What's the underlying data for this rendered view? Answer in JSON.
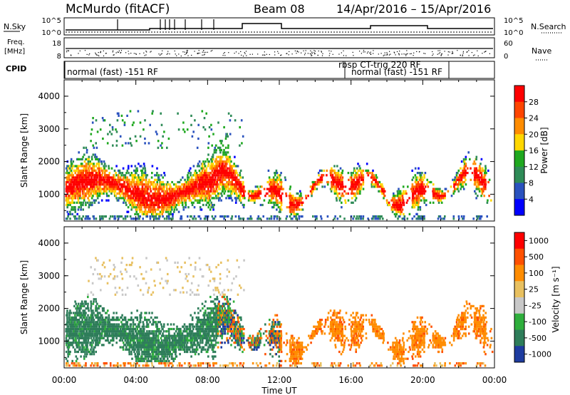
{
  "header": {
    "station": "McMurdo (fitACF)",
    "beam": "Beam 08",
    "date_range": "14/Apr/2016 – 15/Apr/2016"
  },
  "noise_panel": {
    "left_label": "N.Sky",
    "right_label": "N.Search",
    "left_ticks": [
      "10^5",
      "10^0"
    ],
    "right_ticks": [
      "10^5",
      "10^0"
    ]
  },
  "freq_panel": {
    "left_label_top": "Freq.",
    "left_label_bottom": "[MHz]",
    "right_label": "Nave",
    "left_ticks": [
      "18",
      "8"
    ],
    "right_ticks": [
      "60",
      "0"
    ]
  },
  "cpid_panel": {
    "label": "CPID",
    "programs": [
      {
        "text": "normal (fast) -151 RF"
      },
      {
        "text": "rbsp CT-trig 220 RF"
      },
      {
        "text": "normal (fast) -151 RF"
      }
    ]
  },
  "x_axis": {
    "label": "Time UT",
    "ticks": [
      "00:00",
      "04:00",
      "08:00",
      "12:00",
      "16:00",
      "20:00",
      "00:00"
    ]
  },
  "colors": {
    "power": [
      "#0000ff",
      "#2a52be",
      "#2e8b57",
      "#1fa81f",
      "#ffd700",
      "#ff8c00",
      "#ff4500",
      "#ff0000"
    ],
    "velocity": [
      "#1e3ca0",
      "#2e7d5a",
      "#2eae3c",
      "#c8c8c8",
      "#e8c060",
      "#ff8c00",
      "#ff5000",
      "#ff0000"
    ]
  },
  "chart_data": [
    {
      "type": "heatmap",
      "name": "power",
      "xlabel": "Time UT",
      "ylabel": "Slant Range [km]",
      "xlim": [
        0,
        24
      ],
      "ylim": [
        180,
        4500
      ],
      "yticks": [
        "1000",
        "2000",
        "3000",
        "4000"
      ],
      "colorbar": {
        "label": "Power [dB]",
        "ticks": [
          "28",
          "24",
          "20",
          "16",
          "12",
          "8",
          "4"
        ],
        "range": [
          0,
          32
        ]
      }
    },
    {
      "type": "heatmap",
      "name": "velocity",
      "xlabel": "Time UT",
      "ylabel": "Slant Range [km]",
      "xlim": [
        0,
        24
      ],
      "ylim": [
        180,
        4500
      ],
      "yticks": [
        "1000",
        "2000",
        "3000",
        "4000"
      ],
      "colorbar": {
        "label": "Velocity [m s⁻¹]",
        "ticks": [
          "1000",
          "500",
          "100",
          "25",
          "-25",
          "-100",
          "-500",
          "-1000"
        ]
      }
    }
  ]
}
